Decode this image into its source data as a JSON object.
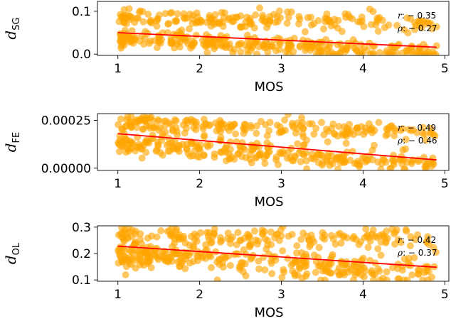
{
  "chart_data": [
    {
      "type": "scatter",
      "xlabel": "MOS",
      "ylabel": {
        "symbol": "d",
        "subscript": "SG"
      },
      "xlim": [
        0.75,
        5.05
      ],
      "ylim": [
        -0.003,
        0.123
      ],
      "xticks": [
        "1",
        "2",
        "3",
        "4",
        "5"
      ],
      "xtick_values": [
        1,
        2,
        3,
        4,
        5
      ],
      "yticks": [
        "0.0",
        "0.1"
      ],
      "ytick_values": [
        0.0,
        0.1
      ],
      "point_color": "#ffa500",
      "fit_line": {
        "color": "#ff0000",
        "x": [
          1.0,
          4.9
        ],
        "y": [
          0.05,
          0.016
        ]
      },
      "annotations": [
        {
          "symbol": "r",
          "text": ": − 0.35"
        },
        {
          "symbol": "ρ",
          "text": ": − 0.27"
        }
      ],
      "band_model": {
        "upper_band": {
          "center_at_1": 0.085,
          "center_at_5": 0.073,
          "spread": 0.012,
          "share": 0.4
        },
        "lower_band": {
          "center_at_1": 0.038,
          "center_at_5": 0.004,
          "spread": 0.012,
          "share": 0.6
        },
        "n_points": 480,
        "seed": 11
      }
    },
    {
      "type": "scatter",
      "xlabel": "MOS",
      "ylabel": {
        "symbol": "d",
        "subscript": "FE"
      },
      "xlim": [
        0.75,
        5.05
      ],
      "ylim": [
        -1.2e-05,
        0.000285
      ],
      "xticks": [
        "1",
        "2",
        "3",
        "4",
        "5"
      ],
      "xtick_values": [
        1,
        2,
        3,
        4,
        5
      ],
      "yticks": [
        "0.00000",
        "0.00025"
      ],
      "ytick_values": [
        0.0,
        0.00025
      ],
      "point_color": "#ffa500",
      "fit_line": {
        "color": "#ff0000",
        "x": [
          1.0,
          4.9
        ],
        "y": [
          0.00018,
          4.3e-05
        ]
      },
      "annotations": [
        {
          "symbol": "r",
          "text": ": − 0.49"
        },
        {
          "symbol": "ρ",
          "text": ": − 0.46"
        }
      ],
      "band_model": {
        "upper_band": {
          "center_at_1": 0.00023,
          "center_at_5": 0.00019,
          "spread": 3e-05,
          "share": 0.45
        },
        "lower_band": {
          "center_at_1": 0.00013,
          "center_at_5": 1.2e-05,
          "spread": 3e-05,
          "share": 0.55
        },
        "n_points": 480,
        "seed": 23
      }
    },
    {
      "type": "scatter",
      "xlabel": "MOS",
      "ylabel": {
        "symbol": "d",
        "subscript": "OL"
      },
      "xlim": [
        0.75,
        5.05
      ],
      "ylim": [
        0.095,
        0.305
      ],
      "xticks": [
        "1",
        "2",
        "3",
        "4",
        "5"
      ],
      "xtick_values": [
        1,
        2,
        3,
        4,
        5
      ],
      "yticks": [
        "0.1",
        "0.2",
        "0.3"
      ],
      "ytick_values": [
        0.1,
        0.2,
        0.3
      ],
      "point_color": "#ffa500",
      "fit_line": {
        "color": "#ff0000",
        "x": [
          1.0,
          4.9
        ],
        "y": [
          0.228,
          0.148
        ]
      },
      "annotations": [
        {
          "symbol": "r",
          "text": ": − 0.42"
        },
        {
          "symbol": "ρ",
          "text": ": − 0.37"
        }
      ],
      "band_model": {
        "upper_band": {
          "center_at_1": 0.275,
          "center_at_5": 0.255,
          "spread": 0.02,
          "share": 0.35
        },
        "lower_band": {
          "center_at_1": 0.2,
          "center_at_5": 0.13,
          "spread": 0.03,
          "share": 0.65
        },
        "n_points": 480,
        "seed": 37
      }
    }
  ]
}
